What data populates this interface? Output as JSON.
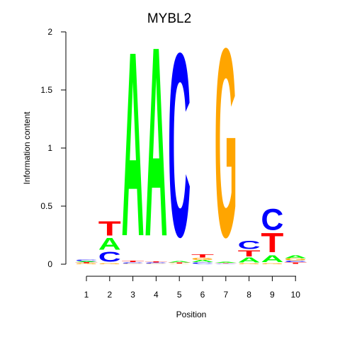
{
  "chart_data": {
    "type": "sequence-logo",
    "title": "MYBL2",
    "xlabel": "Position",
    "ylabel": "Information content",
    "ylim": [
      0,
      2
    ],
    "y_ticks": [
      "0",
      "0.5",
      "1",
      "1.5",
      "2"
    ],
    "positions": [
      "1",
      "2",
      "3",
      "4",
      "5",
      "6",
      "7",
      "8",
      "9",
      "10"
    ],
    "colors": {
      "A": "#00ff00",
      "C": "#0000ff",
      "G": "#ffa500",
      "T": "#ff0000"
    },
    "columns": [
      [
        {
          "letter": "G",
          "height": 0.008
        },
        {
          "letter": "T",
          "height": 0.008
        },
        {
          "letter": "A",
          "height": 0.01
        },
        {
          "letter": "C",
          "height": 0.012
        }
      ],
      [
        {
          "letter": "G",
          "height": 0.01
        },
        {
          "letter": "C",
          "height": 0.1
        },
        {
          "letter": "A",
          "height": 0.12
        },
        {
          "letter": "T",
          "height": 0.14
        }
      ],
      [
        {
          "letter": "G",
          "height": 0.005
        },
        {
          "letter": "C",
          "height": 0.01
        },
        {
          "letter": "T",
          "height": 0.015
        },
        {
          "letter": "A",
          "height": 1.83
        }
      ],
      [
        {
          "letter": "G",
          "height": 0.005
        },
        {
          "letter": "C",
          "height": 0.008
        },
        {
          "letter": "T",
          "height": 0.01
        },
        {
          "letter": "A",
          "height": 1.88
        }
      ],
      [
        {
          "letter": "G",
          "height": 0.005
        },
        {
          "letter": "T",
          "height": 0.008
        },
        {
          "letter": "A",
          "height": 0.015
        },
        {
          "letter": "C",
          "height": 1.82
        }
      ],
      [
        {
          "letter": "C",
          "height": 0.015
        },
        {
          "letter": "A",
          "height": 0.02
        },
        {
          "letter": "G",
          "height": 0.02
        },
        {
          "letter": "T",
          "height": 0.03
        }
      ],
      [
        {
          "letter": "C",
          "height": 0.005
        },
        {
          "letter": "T",
          "height": 0.005
        },
        {
          "letter": "A",
          "height": 0.01
        },
        {
          "letter": "G",
          "height": 1.87
        }
      ],
      [
        {
          "letter": "G",
          "height": 0.01
        },
        {
          "letter": "A",
          "height": 0.05
        },
        {
          "letter": "T",
          "height": 0.06
        },
        {
          "letter": "C",
          "height": 0.08
        }
      ],
      [
        {
          "letter": "G",
          "height": 0.01
        },
        {
          "letter": "A",
          "height": 0.07
        },
        {
          "letter": "T",
          "height": 0.19
        },
        {
          "letter": "C",
          "height": 0.21
        }
      ],
      [
        {
          "letter": "T",
          "height": 0.015
        },
        {
          "letter": "C",
          "height": 0.015
        },
        {
          "letter": "G",
          "height": 0.02
        },
        {
          "letter": "A",
          "height": 0.025
        }
      ]
    ]
  }
}
